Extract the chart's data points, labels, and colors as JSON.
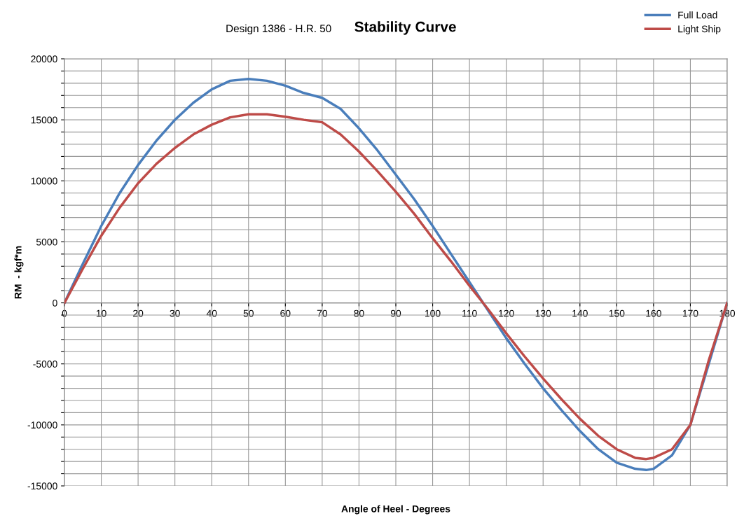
{
  "chart_data": {
    "type": "line",
    "title": "Stability Curve",
    "subtitle": "Design 1386 - H.R. 50",
    "xlabel": "Angle of Heel - Degrees",
    "ylabel": "RM  - kgf*m",
    "x": [
      0,
      5,
      10,
      15,
      20,
      25,
      30,
      35,
      40,
      45,
      50,
      55,
      60,
      65,
      70,
      75,
      80,
      85,
      90,
      95,
      100,
      105,
      110,
      115,
      120,
      125,
      130,
      135,
      140,
      145,
      150,
      155,
      158,
      160,
      165,
      170,
      175,
      180
    ],
    "series": [
      {
        "name": "Full Load",
        "color": "#4a7ebb",
        "values": [
          0,
          3200,
          6300,
          9000,
          11300,
          13300,
          15000,
          16400,
          17500,
          18200,
          18350,
          18200,
          17800,
          17200,
          16800,
          15900,
          14300,
          12500,
          10500,
          8500,
          6300,
          4000,
          1700,
          -600,
          -2900,
          -5000,
          -7000,
          -8800,
          -10500,
          -12000,
          -13100,
          -13600,
          -13700,
          -13600,
          -12500,
          -10000,
          -5000,
          0
        ]
      },
      {
        "name": "Light Ship",
        "color": "#be4b48",
        "values": [
          0,
          2800,
          5500,
          7800,
          9800,
          11400,
          12700,
          13800,
          14600,
          15200,
          15450,
          15450,
          15250,
          15000,
          14800,
          13800,
          12400,
          10800,
          9100,
          7300,
          5300,
          3400,
          1400,
          -500,
          -2500,
          -4400,
          -6200,
          -7900,
          -9500,
          -10900,
          -12000,
          -12700,
          -12800,
          -12700,
          -12000,
          -10000,
          -4700,
          0
        ]
      }
    ],
    "xlim": [
      0,
      180
    ],
    "xticks": [
      0,
      10,
      20,
      30,
      40,
      50,
      60,
      70,
      80,
      90,
      100,
      110,
      120,
      130,
      140,
      150,
      160,
      170,
      180
    ],
    "ylim": [
      -15000,
      20000
    ],
    "yticks": [
      -15000,
      {
        "value": -14000,
        "label": null
      },
      {
        "value": -13000,
        "label": null
      },
      {
        "value": -12000,
        "label": null
      },
      {
        "value": -11000,
        "label": null
      },
      -10000,
      {
        "value": -9000,
        "label": null
      },
      {
        "value": -8000,
        "label": null
      },
      {
        "value": -7000,
        "label": null
      },
      {
        "value": -6000,
        "label": null
      },
      -5000,
      {
        "value": -4000,
        "label": null
      },
      {
        "value": -3000,
        "label": null
      },
      {
        "value": -2000,
        "label": null
      },
      {
        "value": -1000,
        "label": null
      },
      0,
      {
        "value": 1000,
        "label": null
      },
      {
        "value": 2000,
        "label": null
      },
      {
        "value": 3000,
        "label": null
      },
      {
        "value": 4000,
        "label": null
      },
      5000,
      {
        "value": 6000,
        "label": null
      },
      {
        "value": 7000,
        "label": null
      },
      {
        "value": 8000,
        "label": null
      },
      {
        "value": 9000,
        "label": null
      },
      10000,
      {
        "value": 11000,
        "label": null
      },
      {
        "value": 12000,
        "label": null
      },
      {
        "value": 13000,
        "label": null
      },
      {
        "value": 14000,
        "label": null
      },
      15000,
      {
        "value": 16000,
        "label": null
      },
      {
        "value": 17000,
        "label": null
      },
      {
        "value": 18000,
        "label": null
      },
      {
        "value": 19000,
        "label": null
      },
      20000
    ],
    "grid": true,
    "legend": "top right",
    "marker": "none",
    "line_style": "solid"
  }
}
